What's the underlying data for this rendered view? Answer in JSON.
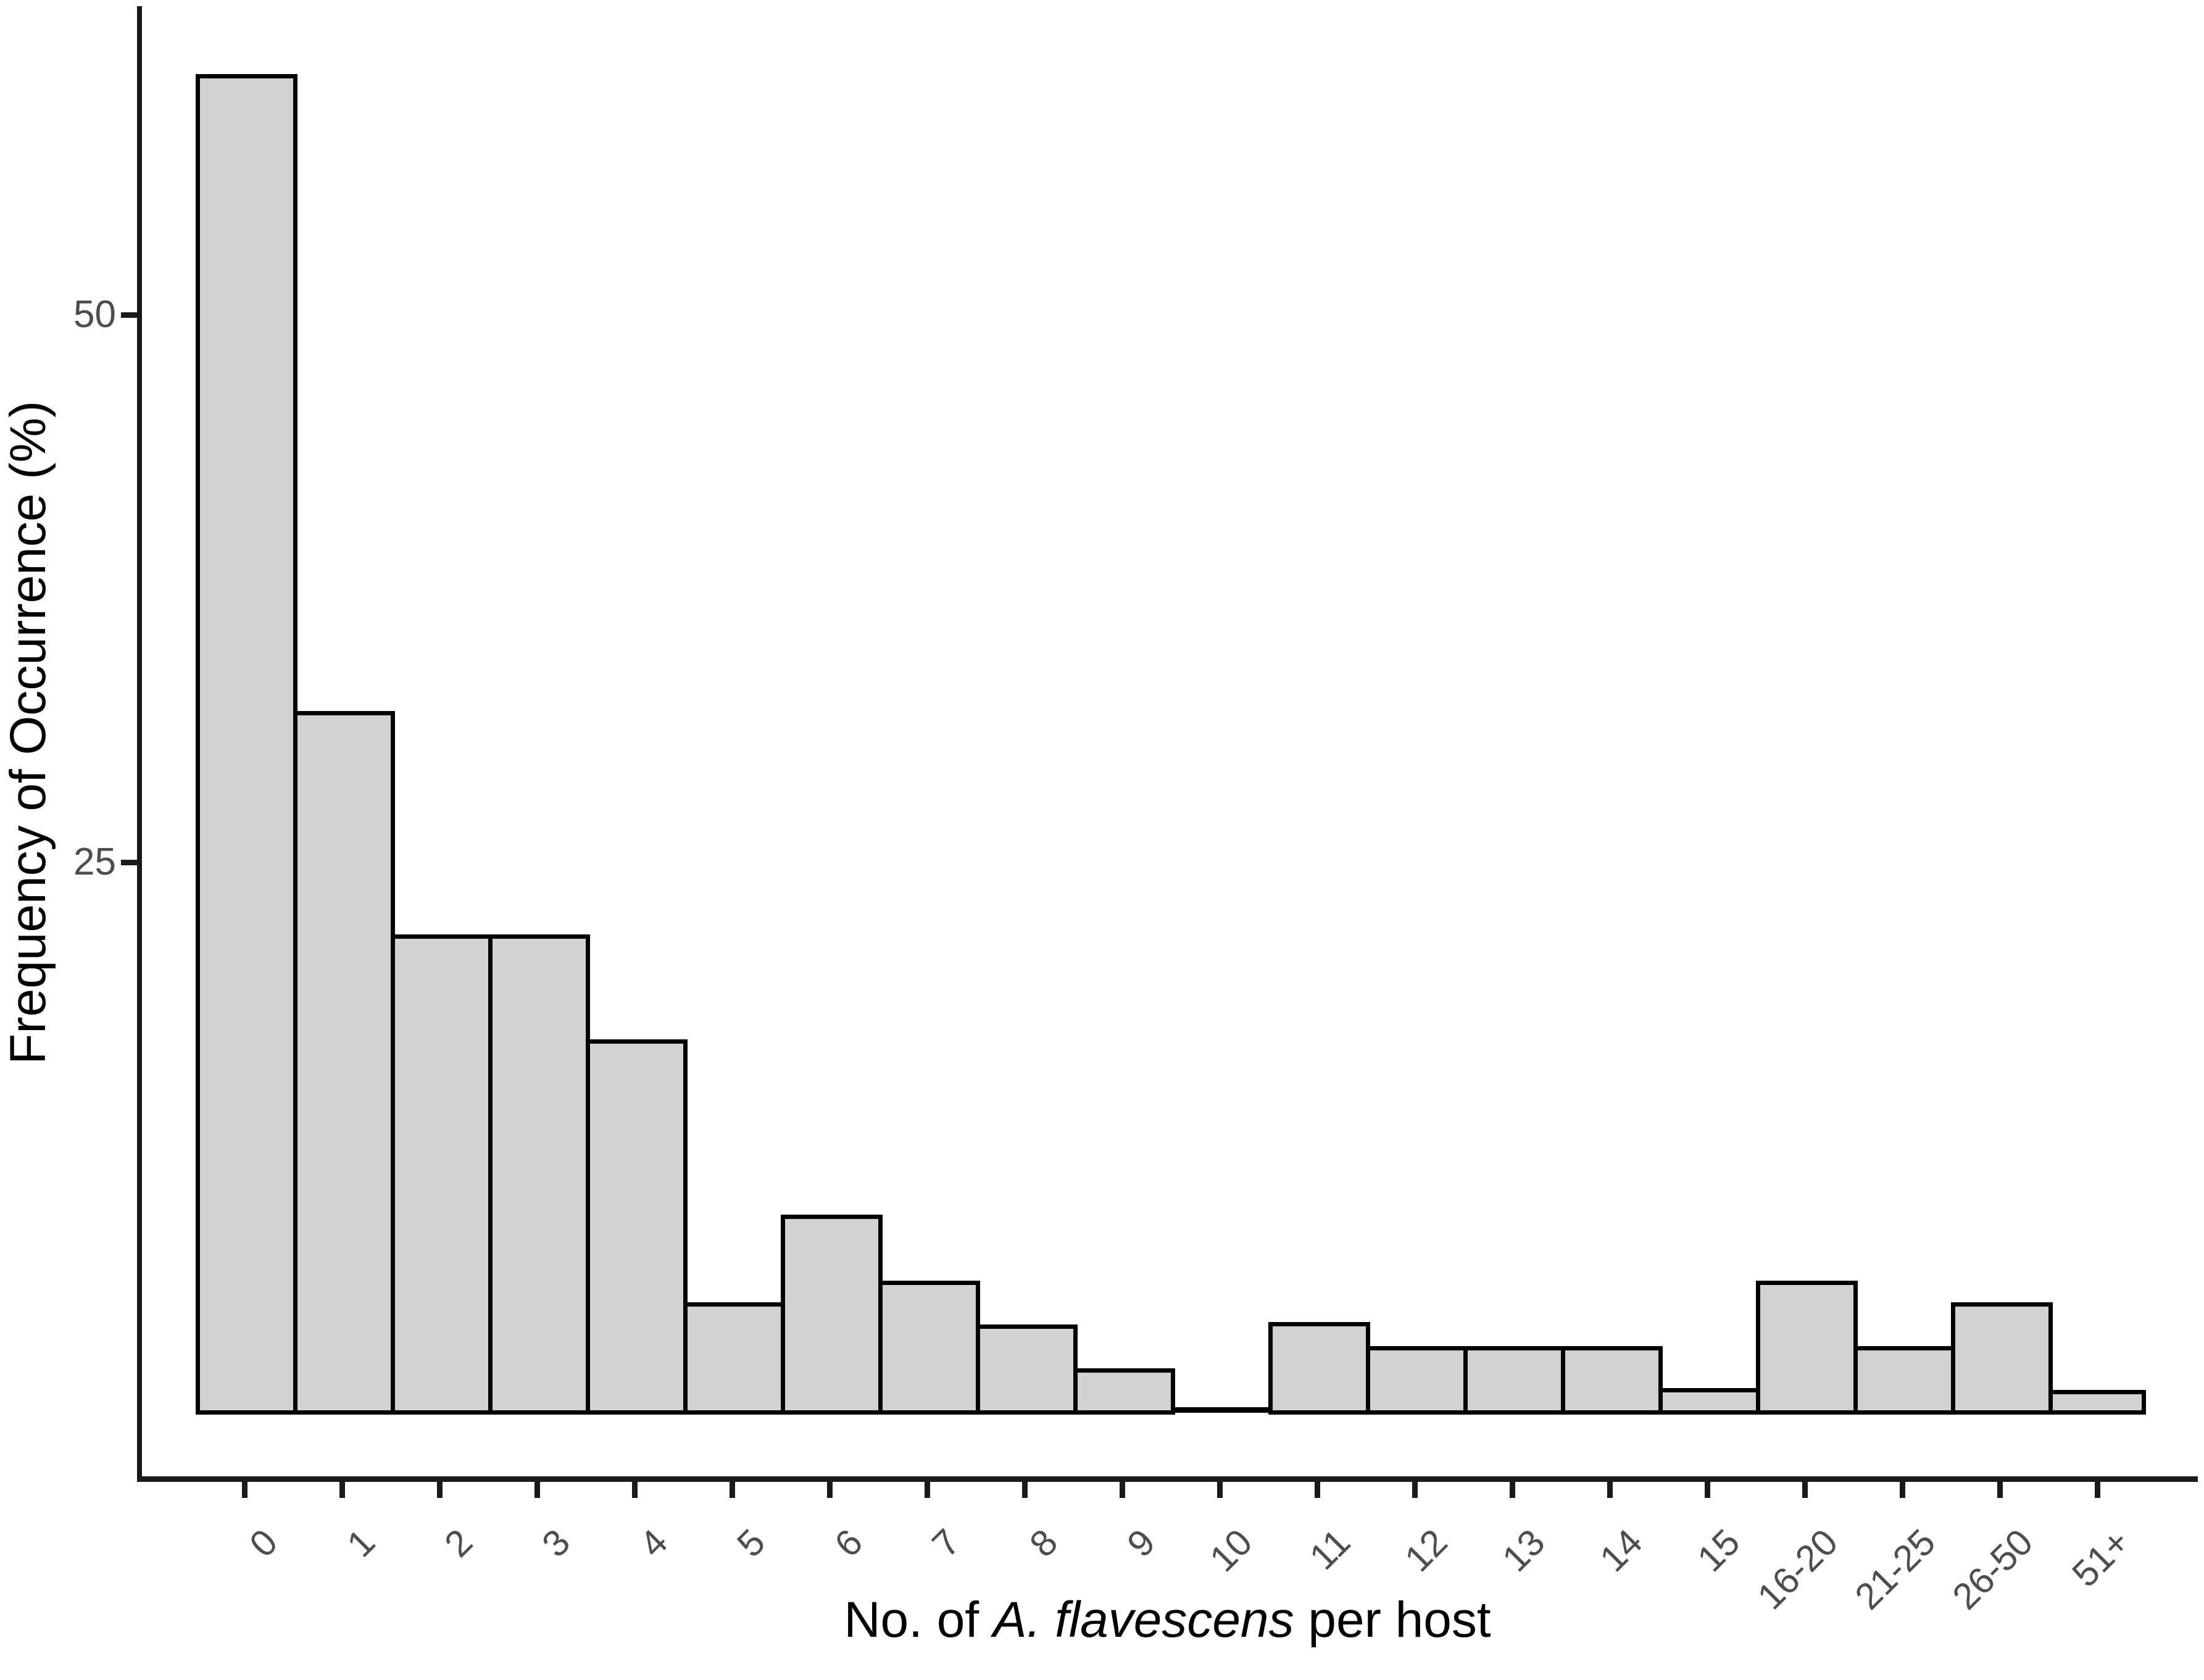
{
  "figure": {
    "background": "#ffffff"
  },
  "y_axis": {
    "title": "Frequency of Occurrence (%)",
    "tick_labels": [
      "25",
      "50"
    ]
  },
  "x_axis": {
    "title_plain": "No. of A. flavescens per host",
    "title_parts": [
      {
        "text": "No. of ",
        "italic": false
      },
      {
        "text": "A. flavescens",
        "italic": true
      },
      {
        "text": " per host",
        "italic": false
      }
    ]
  },
  "chart_data": {
    "type": "bar",
    "title": "",
    "categories": [
      "0",
      "1",
      "2",
      "3",
      "4",
      "5",
      "6",
      "7",
      "8",
      "9",
      "10",
      "11",
      "12",
      "13",
      "14",
      "15",
      "16-20",
      "21-25",
      "26-50",
      "51+"
    ],
    "values": [
      61.0,
      31.9,
      21.7,
      21.7,
      16.9,
      4.9,
      8.9,
      5.9,
      3.9,
      1.9,
      0,
      4.0,
      2.9,
      2.9,
      2.9,
      1.0,
      5.9,
      2.9,
      4.9,
      0.9
    ],
    "xlabel": "No. of A. flavescens per host",
    "ylabel": "Frequency of Occurrence (%)",
    "ylim": [
      0,
      64
    ],
    "yticks": [
      25,
      50
    ],
    "grid": false,
    "legend": false,
    "bar_fill": "#d2d2d2",
    "bar_border": "#000000",
    "axis_color": "#1a1a1a",
    "tick_label_color": "#4d4d4d",
    "title_color": "#000000"
  }
}
